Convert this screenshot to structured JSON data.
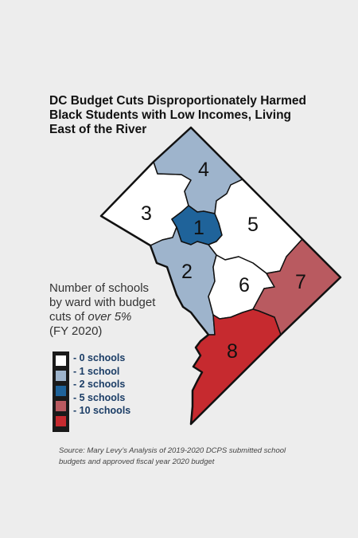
{
  "title_lines": [
    "DC Budget Cuts Disproportionately Harmed",
    "Black Students with Low Incomes, Living",
    "East of the River"
  ],
  "description": {
    "line1": "Number of schools",
    "line2": "by ward with budget",
    "line3_prefix": "cuts of ",
    "line3_emphasis": "over 5%",
    "line4": "(FY 2020)"
  },
  "legend": [
    {
      "label": "- 0 schools",
      "color": "#ffffff"
    },
    {
      "label": "- 1 school",
      "color": "#9eb4cc"
    },
    {
      "label": "- 2 schools",
      "color": "#1f639a"
    },
    {
      "label": "- 5 schools",
      "color": "#b95a60"
    },
    {
      "label": "- 10 schools",
      "color": "#c62a2f"
    }
  ],
  "wards": [
    {
      "label": "1",
      "schools": 2,
      "color": "#1f639a"
    },
    {
      "label": "2",
      "schools": 1,
      "color": "#9eb4cc"
    },
    {
      "label": "3",
      "schools": 0,
      "color": "#ffffff"
    },
    {
      "label": "4",
      "schools": 1,
      "color": "#9eb4cc"
    },
    {
      "label": "5",
      "schools": 0,
      "color": "#ffffff"
    },
    {
      "label": "6",
      "schools": 0,
      "color": "#ffffff"
    },
    {
      "label": "7",
      "schools": 5,
      "color": "#b95a60"
    },
    {
      "label": "8",
      "schools": 10,
      "color": "#c62a2f"
    }
  ],
  "source_lines": [
    "Source: Mary Levy’s Analysis of 2019-2020 DCPS submitted school",
    "budgets and approved fiscal year 2020 budget"
  ]
}
